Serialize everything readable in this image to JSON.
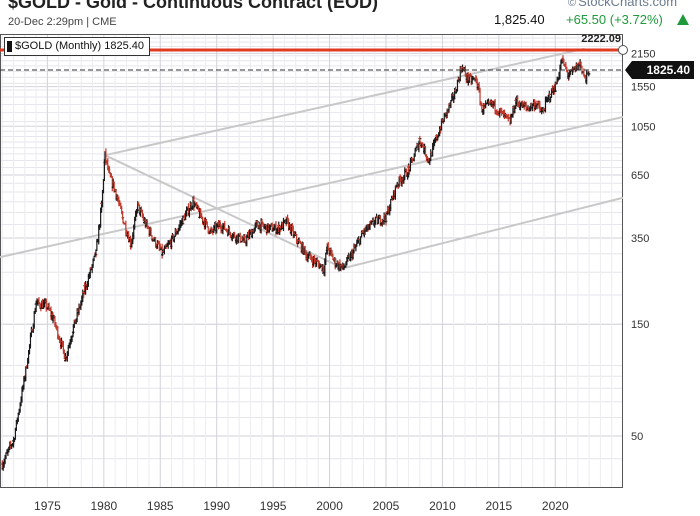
{
  "header": {
    "title": "$GOLD - Gold - Continuous Contract (EOD)",
    "subtitle": "20-Dec 2:29pm | CME",
    "brand": "StockCharts.com",
    "brand_mark": "©",
    "last_price": "1,825.40",
    "change": "+65.50 (+3.72%)",
    "change_color": "#1f9a3a"
  },
  "legend": {
    "label": "$GOLD (Monthly) 1825.40"
  },
  "chart_data": {
    "type": "ohlc",
    "title": "$GOLD - Gold - Continuous Contract (EOD)",
    "interval": "Monthly",
    "y_scale": "log",
    "ylim": [
      30,
      2600
    ],
    "xlim": [
      1970.8,
      2026
    ],
    "yticks": [
      50,
      150,
      350,
      650,
      1050,
      1550,
      2150
    ],
    "xticks": [
      1975,
      1980,
      1985,
      1990,
      1995,
      2000,
      2005,
      2010,
      2015,
      2020
    ],
    "grid": true,
    "up_color": "#1a1a1a",
    "down_color": "#c0392b",
    "series": [
      {
        "name": "$GOLD (Monthly)",
        "points": [
          {
            "x": 1971.0,
            "y": 38
          },
          {
            "x": 1972.0,
            "y": 48
          },
          {
            "x": 1973.0,
            "y": 90
          },
          {
            "x": 1974.0,
            "y": 185
          },
          {
            "x": 1974.9,
            "y": 180
          },
          {
            "x": 1975.5,
            "y": 160
          },
          {
            "x": 1976.6,
            "y": 108
          },
          {
            "x": 1977.3,
            "y": 145
          },
          {
            "x": 1978.3,
            "y": 210
          },
          {
            "x": 1979.3,
            "y": 300
          },
          {
            "x": 1979.8,
            "y": 480
          },
          {
            "x": 1980.1,
            "y": 790
          },
          {
            "x": 1980.5,
            "y": 640
          },
          {
            "x": 1981.0,
            "y": 560
          },
          {
            "x": 1981.7,
            "y": 420
          },
          {
            "x": 1982.4,
            "y": 330
          },
          {
            "x": 1983.0,
            "y": 480
          },
          {
            "x": 1983.6,
            "y": 410
          },
          {
            "x": 1984.5,
            "y": 340
          },
          {
            "x": 1985.2,
            "y": 300
          },
          {
            "x": 1986.0,
            "y": 340
          },
          {
            "x": 1987.0,
            "y": 420
          },
          {
            "x": 1987.9,
            "y": 500
          },
          {
            "x": 1988.5,
            "y": 440
          },
          {
            "x": 1989.5,
            "y": 370
          },
          {
            "x": 1990.3,
            "y": 400
          },
          {
            "x": 1991.5,
            "y": 360
          },
          {
            "x": 1992.5,
            "y": 340
          },
          {
            "x": 1993.6,
            "y": 400
          },
          {
            "x": 1994.5,
            "y": 385
          },
          {
            "x": 1995.5,
            "y": 385
          },
          {
            "x": 1996.2,
            "y": 410
          },
          {
            "x": 1997.0,
            "y": 350
          },
          {
            "x": 1998.0,
            "y": 295
          },
          {
            "x": 1999.5,
            "y": 260
          },
          {
            "x": 1999.8,
            "y": 320
          },
          {
            "x": 2000.5,
            "y": 275
          },
          {
            "x": 2001.2,
            "y": 260
          },
          {
            "x": 2002.0,
            "y": 300
          },
          {
            "x": 2003.0,
            "y": 370
          },
          {
            "x": 2004.0,
            "y": 410
          },
          {
            "x": 2005.0,
            "y": 430
          },
          {
            "x": 2006.0,
            "y": 600
          },
          {
            "x": 2007.0,
            "y": 680
          },
          {
            "x": 2008.0,
            "y": 920
          },
          {
            "x": 2008.8,
            "y": 750
          },
          {
            "x": 2009.5,
            "y": 940
          },
          {
            "x": 2010.0,
            "y": 1100
          },
          {
            "x": 2011.0,
            "y": 1400
          },
          {
            "x": 2011.7,
            "y": 1880
          },
          {
            "x": 2012.3,
            "y": 1650
          },
          {
            "x": 2013.0,
            "y": 1660
          },
          {
            "x": 2013.5,
            "y": 1250
          },
          {
            "x": 2014.5,
            "y": 1300
          },
          {
            "x": 2015.5,
            "y": 1150
          },
          {
            "x": 2016.0,
            "y": 1100
          },
          {
            "x": 2016.5,
            "y": 1340
          },
          {
            "x": 2017.5,
            "y": 1250
          },
          {
            "x": 2018.3,
            "y": 1320
          },
          {
            "x": 2018.8,
            "y": 1200
          },
          {
            "x": 2019.5,
            "y": 1420
          },
          {
            "x": 2020.0,
            "y": 1550
          },
          {
            "x": 2020.6,
            "y": 2000
          },
          {
            "x": 2021.2,
            "y": 1720
          },
          {
            "x": 2022.2,
            "y": 1950
          },
          {
            "x": 2022.7,
            "y": 1650
          },
          {
            "x": 2022.97,
            "y": 1825.4
          }
        ]
      }
    ],
    "overlays": [
      {
        "kind": "horizontal",
        "name": "resistance",
        "y": 2222.09,
        "label": "2222.09",
        "color": "#e03a20"
      },
      {
        "kind": "horizontal-dashed",
        "name": "last-price",
        "y": 1825.4,
        "label": "1825.40",
        "color": "#333333"
      },
      {
        "kind": "trendline",
        "name": "fan-upper",
        "points": [
          [
            1980.1,
            790
          ],
          [
            2022.6,
            2250
          ]
        ],
        "color": "#c8c8c8"
      },
      {
        "kind": "trendline",
        "name": "fan-middle",
        "points": [
          [
            1970.8,
            290
          ],
          [
            2026,
            1150
          ]
        ],
        "color": "#c8c8c8"
      },
      {
        "kind": "trendline",
        "name": "fan-lower",
        "points": [
          [
            2001.2,
            260
          ],
          [
            2026,
            520
          ]
        ],
        "color": "#c8c8c8"
      },
      {
        "kind": "trendline",
        "name": "decline-line",
        "points": [
          [
            1980.1,
            790
          ],
          [
            2001.2,
            260
          ]
        ],
        "color": "#c8c8c8"
      }
    ]
  }
}
